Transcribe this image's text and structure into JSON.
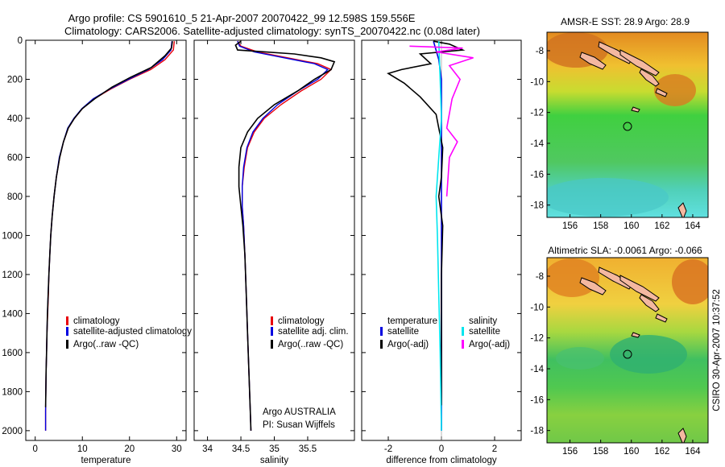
{
  "title_line1": "Argo profile: CS 5901610_5 21-Apr-2007 20070422_99 12.598S 159.556E",
  "title_line2": "Climatology: CARS2006. Satellite-adjusted climatology: synTS_20070422.nc (0.08d later)",
  "side_label": "CSIRO 30-Apr-2007 10:37:52",
  "credit": {
    "line1": "Argo AUSTRALIA",
    "line2": "PI: Susan Wijffels"
  },
  "colors": {
    "climatology": "#e8000b",
    "satellite": "#0000e0",
    "argo": "#000000",
    "salinity_sat": "#00e5ee",
    "salinity_argo": "#ff00ff"
  },
  "chart_data": [
    {
      "type": "line",
      "xlabel": "temperature",
      "xlim": [
        -2,
        32
      ],
      "ylim": [
        2050,
        0
      ],
      "xticks": [
        0,
        10,
        20,
        30
      ],
      "yticks": [
        0,
        200,
        400,
        600,
        800,
        1000,
        1200,
        1400,
        1600,
        1800,
        2000
      ],
      "legend": [
        "climatology",
        "satellite-adjusted climatology",
        "Argo(..raw -QC)"
      ],
      "series": [
        {
          "name": "climatology",
          "color": "#e8000b",
          "points": [
            [
              29.5,
              5
            ],
            [
              29.3,
              50
            ],
            [
              27.5,
              100
            ],
            [
              24.5,
              150
            ],
            [
              20,
              200
            ],
            [
              16,
              250
            ],
            [
              12.5,
              300
            ],
            [
              10,
              350
            ],
            [
              8.3,
              400
            ],
            [
              7,
              450
            ],
            [
              6,
              520
            ],
            [
              5.2,
              600
            ],
            [
              4.5,
              700
            ],
            [
              4,
              800
            ],
            [
              3.6,
              900
            ],
            [
              3.3,
              1000
            ],
            [
              3.1,
              1100
            ],
            [
              2.9,
              1200
            ],
            [
              2.8,
              1300
            ],
            [
              2.65,
              1400
            ],
            [
              2.5,
              1500
            ],
            [
              2.4,
              1600
            ],
            [
              2.3,
              1700
            ],
            [
              2.25,
              1800
            ],
            [
              2.2,
              1900
            ],
            [
              2.2,
              2000
            ]
          ]
        },
        {
          "name": "satellite-adjusted climatology",
          "color": "#0000e0",
          "points": [
            [
              29,
              5
            ],
            [
              28.8,
              50
            ],
            [
              27,
              100
            ],
            [
              24,
              150
            ],
            [
              19.8,
              200
            ],
            [
              15.8,
              250
            ],
            [
              12.3,
              300
            ],
            [
              9.9,
              350
            ],
            [
              8.2,
              400
            ],
            [
              6.9,
              450
            ],
            [
              6,
              520
            ],
            [
              5.1,
              600
            ],
            [
              4.5,
              700
            ],
            [
              4,
              800
            ],
            [
              3.6,
              900
            ],
            [
              3.3,
              1000
            ],
            [
              3.1,
              1100
            ],
            [
              2.9,
              1200
            ],
            [
              2.75,
              1300
            ],
            [
              2.6,
              1400
            ],
            [
              2.5,
              1500
            ],
            [
              2.4,
              1600
            ],
            [
              2.3,
              1700
            ],
            [
              2.25,
              1800
            ],
            [
              2.2,
              1900
            ],
            [
              2.2,
              2000
            ]
          ]
        },
        {
          "name": "Argo(..raw -QC)",
          "color": "#000000",
          "points": [
            [
              29.1,
              5
            ],
            [
              28.9,
              40
            ],
            [
              27.5,
              80
            ],
            [
              24.6,
              140
            ],
            [
              20.2,
              190
            ],
            [
              16.3,
              240
            ],
            [
              12.6,
              300
            ],
            [
              10,
              350
            ],
            [
              8.3,
              400
            ],
            [
              7,
              450
            ],
            [
              6,
              520
            ],
            [
              5.2,
              600
            ],
            [
              4.5,
              700
            ],
            [
              4,
              800
            ],
            [
              3.6,
              900
            ],
            [
              3.3,
              1000
            ],
            [
              3.1,
              1100
            ],
            [
              2.9,
              1200
            ],
            [
              2.75,
              1300
            ],
            [
              2.6,
              1400
            ],
            [
              2.5,
              1500
            ],
            [
              2.4,
              1600
            ],
            [
              2.3,
              1700
            ],
            [
              2.25,
              1800
            ],
            [
              2.2,
              1880
            ]
          ]
        }
      ]
    },
    {
      "type": "line",
      "xlabel": "salinity",
      "xlim": [
        33.8,
        36.2
      ],
      "ylim": [
        2050,
        0
      ],
      "xticks": [
        34,
        34.5,
        35,
        35.5
      ],
      "yticks": [
        0,
        200,
        400,
        600,
        800,
        1000,
        1200,
        1400,
        1600,
        1800,
        2000
      ],
      "legend": [
        "climatology",
        "satellite adj. clim.",
        "Argo(..raw -QC)"
      ],
      "series": [
        {
          "name": "climatology",
          "color": "#e8000b",
          "points": [
            [
              34.45,
              5
            ],
            [
              34.5,
              30
            ],
            [
              34.75,
              60
            ],
            [
              35.2,
              90
            ],
            [
              35.65,
              120
            ],
            [
              35.85,
              150
            ],
            [
              35.7,
              200
            ],
            [
              35.4,
              260
            ],
            [
              35.1,
              330
            ],
            [
              34.85,
              400
            ],
            [
              34.7,
              470
            ],
            [
              34.6,
              550
            ],
            [
              34.55,
              650
            ],
            [
              34.52,
              750
            ],
            [
              34.52,
              850
            ],
            [
              34.54,
              950
            ],
            [
              34.56,
              1100
            ],
            [
              34.58,
              1300
            ],
            [
              34.6,
              1500
            ],
            [
              34.62,
              1700
            ],
            [
              34.64,
              1900
            ],
            [
              34.65,
              2000
            ]
          ]
        },
        {
          "name": "satellite adj. clim.",
          "color": "#0000e0",
          "points": [
            [
              34.45,
              5
            ],
            [
              34.48,
              30
            ],
            [
              34.7,
              60
            ],
            [
              35.15,
              90
            ],
            [
              35.6,
              120
            ],
            [
              35.8,
              150
            ],
            [
              35.65,
              200
            ],
            [
              35.35,
              260
            ],
            [
              35.05,
              330
            ],
            [
              34.83,
              400
            ],
            [
              34.68,
              470
            ],
            [
              34.59,
              550
            ],
            [
              34.54,
              650
            ],
            [
              34.52,
              750
            ],
            [
              34.52,
              850
            ],
            [
              34.54,
              950
            ],
            [
              34.56,
              1100
            ],
            [
              34.58,
              1300
            ],
            [
              34.6,
              1500
            ],
            [
              34.62,
              1700
            ],
            [
              34.64,
              1900
            ],
            [
              34.65,
              2000
            ]
          ]
        },
        {
          "name": "Argo(..raw -QC)",
          "color": "#000000",
          "points": [
            [
              34.5,
              5
            ],
            [
              34.42,
              25
            ],
            [
              34.45,
              50
            ],
            [
              35.3,
              70
            ],
            [
              35.7,
              90
            ],
            [
              35.9,
              110
            ],
            [
              35.85,
              150
            ],
            [
              35.6,
              200
            ],
            [
              35.35,
              260
            ],
            [
              35.0,
              330
            ],
            [
              34.75,
              400
            ],
            [
              34.6,
              470
            ],
            [
              34.5,
              550
            ],
            [
              34.47,
              650
            ],
            [
              34.47,
              750
            ],
            [
              34.5,
              850
            ],
            [
              34.53,
              950
            ],
            [
              34.56,
              1100
            ],
            [
              34.58,
              1300
            ],
            [
              34.6,
              1500
            ],
            [
              34.62,
              1700
            ],
            [
              34.64,
              1900
            ],
            [
              34.65,
              2000
            ]
          ]
        }
      ]
    },
    {
      "type": "line",
      "xlabel": "difference from climatology",
      "xlim": [
        -3,
        3
      ],
      "ylim": [
        2050,
        0
      ],
      "xticks": [
        -2,
        0,
        2
      ],
      "yticks": [
        0,
        200,
        400,
        600,
        800,
        1000,
        1200,
        1400,
        1600,
        1800,
        2000
      ],
      "legend": [
        "temperature",
        "satellite",
        "Argo(-adj)",
        "salinity",
        "satellite",
        "Argo(-adj)"
      ],
      "series": [
        {
          "name": "temperature satellite",
          "color": "#0000e0",
          "points": [
            [
              -0.3,
              5
            ],
            [
              -0.1,
              100
            ],
            [
              0,
              200
            ],
            [
              0,
              400
            ],
            [
              0,
              800
            ],
            [
              0,
              1200
            ],
            [
              0,
              1600
            ],
            [
              0,
              2000
            ]
          ]
        },
        {
          "name": "temperature Argo(-adj)",
          "color": "#000000",
          "points": [
            [
              -0.3,
              5
            ],
            [
              0.3,
              20
            ],
            [
              0.8,
              50
            ],
            [
              -0.8,
              70
            ],
            [
              -0.4,
              120
            ],
            [
              -1.5,
              150
            ],
            [
              -2.0,
              170
            ],
            [
              -1.4,
              220
            ],
            [
              -0.8,
              290
            ],
            [
              -0.2,
              380
            ],
            [
              -0.1,
              450
            ],
            [
              0.05,
              550
            ],
            [
              0,
              700
            ],
            [
              -0.1,
              800
            ],
            [
              0.05,
              950
            ],
            [
              0,
              1200
            ],
            [
              0,
              1500
            ],
            [
              0,
              1870
            ]
          ]
        },
        {
          "name": "salinity satellite",
          "color": "#00e5ee",
          "points": [
            [
              -0.1,
              5
            ],
            [
              -0.05,
              200
            ],
            [
              0,
              400
            ],
            [
              -0.1,
              600
            ],
            [
              -0.2,
              800
            ],
            [
              -0.15,
              1000
            ],
            [
              -0.1,
              1300
            ],
            [
              -0.05,
              1600
            ],
            [
              0,
              2000
            ]
          ]
        },
        {
          "name": "salinity Argo(-adj)",
          "color": "#ff00ff",
          "points": [
            [
              -1.2,
              30
            ],
            [
              0.8,
              40
            ],
            [
              -0.2,
              60
            ],
            [
              1.2,
              90
            ],
            [
              0.3,
              130
            ],
            [
              0.7,
              200
            ],
            [
              0.4,
              300
            ],
            [
              0.2,
              450
            ],
            [
              0.6,
              520
            ],
            [
              0.3,
              600
            ],
            [
              0.2,
              800
            ]
          ]
        }
      ]
    }
  ],
  "maps": [
    {
      "title": "AMSR-E SST: 28.9 Argo: 28.9",
      "xticks": [
        "156",
        "158",
        "160",
        "162",
        "164"
      ],
      "yticks": [
        "-8",
        "-10",
        "-12",
        "-14",
        "-16",
        "-18"
      ],
      "argo_position": {
        "lon": 159.556,
        "lat": -12.598
      }
    },
    {
      "title": "Altimetric SLA: -0.0061 Argo: -0.066",
      "xticks": [
        "156",
        "158",
        "160",
        "162",
        "164"
      ],
      "yticks": [
        "-8",
        "-10",
        "-12",
        "-14",
        "-16",
        "-18"
      ],
      "argo_position": {
        "lon": 159.556,
        "lat": -12.598
      }
    }
  ]
}
